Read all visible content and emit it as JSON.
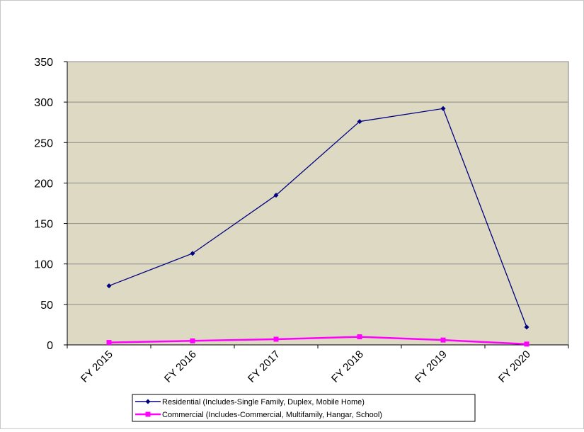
{
  "chart_data": {
    "type": "line",
    "categories": [
      "FY 2015",
      "FY 2016",
      "FY 2017",
      "FY 2018",
      "FY 2019",
      "FY 2020"
    ],
    "series": [
      {
        "name": "Residential (Includes-Single Family, Duplex, Mobile Home)",
        "values": [
          73,
          113,
          185,
          276,
          292,
          22
        ],
        "color": "#000080",
        "marker": "diamond"
      },
      {
        "name": "Commercial (Includes-Commercial, Multifamily, Hangar, School)",
        "values": [
          3,
          5,
          7,
          10,
          6,
          1
        ],
        "color": "#ff00ff",
        "marker": "square"
      }
    ],
    "yticks": [
      "0",
      "50",
      "100",
      "150",
      "200",
      "250",
      "300",
      "350"
    ],
    "ylim": [
      0,
      350
    ],
    "grid": true,
    "plot_background": "#ddd9c3",
    "legend_position": "bottom",
    "title": "",
    "xlabel": "",
    "ylabel": ""
  }
}
